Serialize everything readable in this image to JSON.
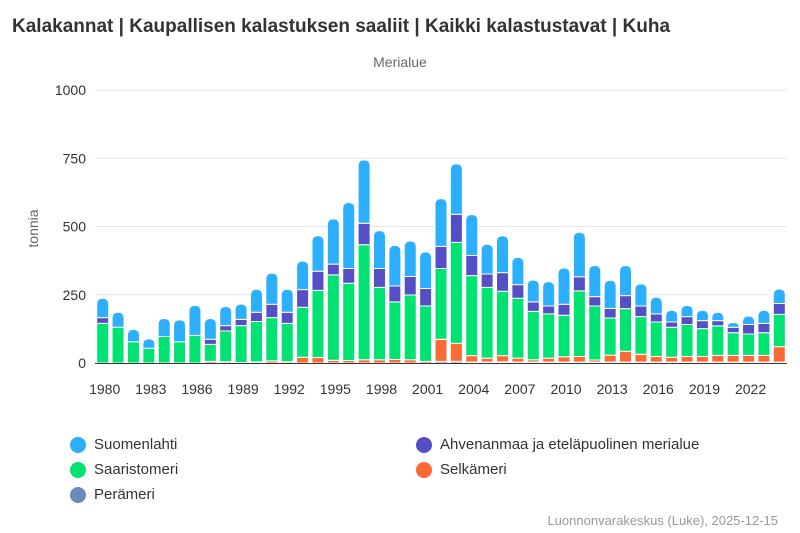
{
  "chart_data": {
    "type": "bar",
    "stacked": true,
    "title": "Kalakannat | Kaupallisen kalastuksen saaliit | Kaikki kalastustavat | Kuha",
    "subtitle": "Merialue",
    "ylabel": "tonnia",
    "ylim": [
      0,
      1000
    ],
    "yticks": [
      0,
      250,
      500,
      750,
      1000
    ],
    "xtick_labels": [
      "1980",
      "1983",
      "1986",
      "1989",
      "1992",
      "1995",
      "1998",
      "2001",
      "2004",
      "2007",
      "2010",
      "2013",
      "2016",
      "2019",
      "2022"
    ],
    "grid": true,
    "legend_placement": "bottom",
    "categories": [
      1980,
      1981,
      1982,
      1983,
      1984,
      1985,
      1986,
      1987,
      1988,
      1989,
      1990,
      1991,
      1992,
      1993,
      1994,
      1995,
      1996,
      1997,
      1998,
      1999,
      2000,
      2001,
      2002,
      2003,
      2004,
      2005,
      2006,
      2007,
      2008,
      2009,
      2010,
      2011,
      2012,
      2013,
      2014,
      2015,
      2016,
      2017,
      2018,
      2019,
      2020,
      2021,
      2022,
      2023,
      2024
    ],
    "series": [
      {
        "name": "Perämeri",
        "color": "#6b8abc",
        "values": [
          0,
          0,
          0,
          0,
          0,
          0,
          0,
          0,
          0,
          0,
          0,
          0,
          0,
          0,
          0,
          0,
          0,
          0,
          0,
          0,
          0,
          0,
          6,
          6,
          3,
          3,
          4,
          3,
          3,
          3,
          3,
          3,
          3,
          3,
          3,
          3,
          3,
          3,
          3,
          3,
          3,
          3,
          3,
          3,
          3
        ]
      },
      {
        "name": "Selkämeri",
        "color": "#fe6a35",
        "values": [
          0,
          0,
          0,
          0,
          0,
          0,
          0,
          6,
          5,
          2,
          4,
          8,
          5,
          21,
          20,
          10,
          9,
          12,
          12,
          13,
          12,
          6,
          81,
          66,
          24,
          15,
          23,
          15,
          9,
          15,
          20,
          21,
          8,
          26,
          40,
          29,
          21,
          18,
          21,
          21,
          25,
          25,
          25,
          25,
          57
        ]
      },
      {
        "name": "Saaristomeri",
        "color": "#00e272",
        "values": [
          145,
          131,
          78,
          54,
          97,
          78,
          101,
          62,
          112,
          135,
          148,
          158,
          140,
          183,
          246,
          313,
          283,
          421,
          265,
          211,
          237,
          203,
          259,
          370,
          293,
          259,
          236,
          219,
          177,
          162,
          152,
          240,
          198,
          136,
          156,
          138,
          126,
          110,
          117,
          102,
          108,
          83,
          78,
          83,
          118
        ]
      },
      {
        "name": "Ahvenanmaa ja eteläpuolinen merialue",
        "color": "#544fc5",
        "values": [
          21,
          0,
          0,
          0,
          0,
          0,
          0,
          19,
          20,
          23,
          34,
          49,
          41,
          65,
          70,
          39,
          54,
          79,
          69,
          58,
          68,
          64,
          81,
          103,
          74,
          49,
          68,
          50,
          35,
          29,
          40,
          52,
          34,
          35,
          48,
          39,
          30,
          19,
          29,
          29,
          19,
          20,
          35,
          34,
          40
        ]
      },
      {
        "name": "Suomenlahti",
        "color": "#2caffe",
        "values": [
          71,
          55,
          45,
          35,
          66,
          80,
          110,
          76,
          70,
          56,
          84,
          114,
          84,
          104,
          130,
          166,
          242,
          232,
          139,
          149,
          130,
          134,
          175,
          185,
          150,
          109,
          135,
          100,
          80,
          89,
          133,
          163,
          114,
          103,
          110,
          81,
          61,
          43,
          41,
          38,
          31,
          17,
          31,
          48,
          53
        ]
      }
    ]
  },
  "legend": [
    {
      "name": "Suomenlahti",
      "color": "#2caffe"
    },
    {
      "name": "Ahvenanmaa ja eteläpuolinen merialue",
      "color": "#544fc5"
    },
    {
      "name": "Saaristomeri",
      "color": "#00e272"
    },
    {
      "name": "Selkämeri",
      "color": "#fe6a35"
    },
    {
      "name": "Perämeri",
      "color": "#6b8abc"
    }
  ],
  "credit": "Luonnonvarakeskus (Luke), 2025-12-15"
}
